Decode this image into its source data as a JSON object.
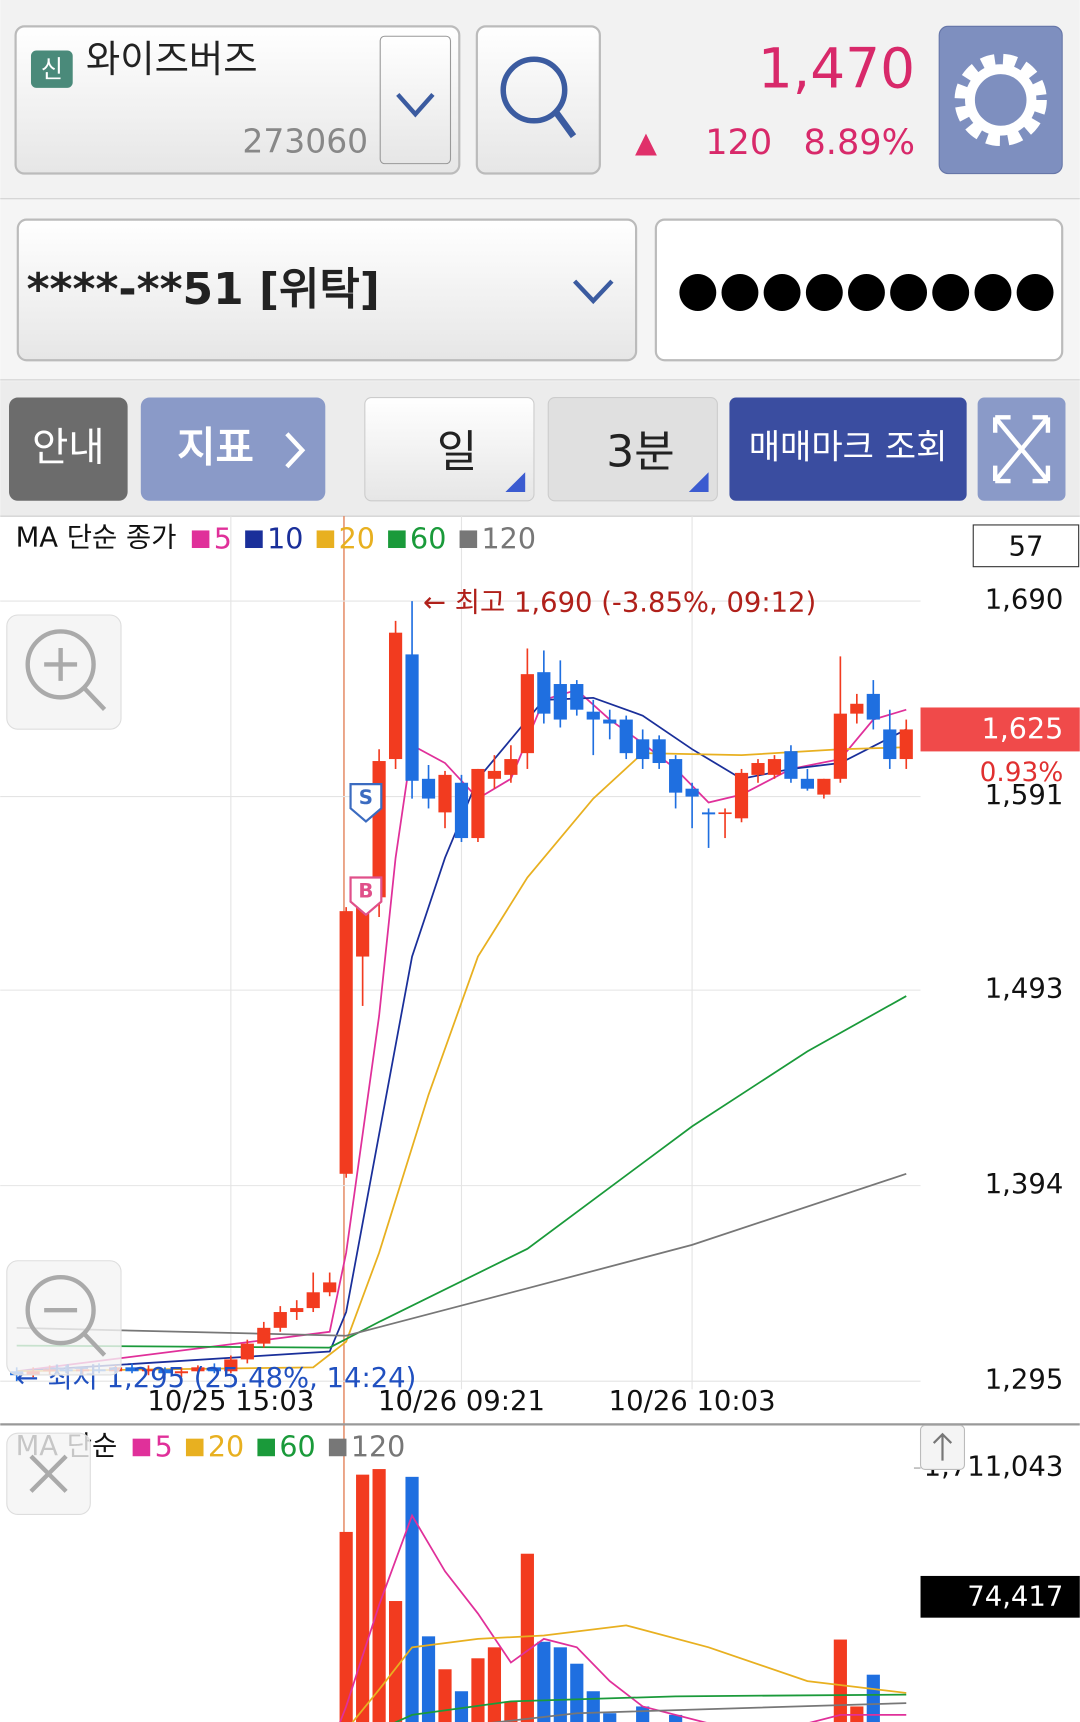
{
  "header": {
    "badge": "신",
    "name": "와이즈버즈",
    "code": "273060",
    "price": "1,470",
    "change_sign": "▲",
    "change": "120",
    "change_pct": "8.89%"
  },
  "account": {
    "number": "****-**51 [위탁]",
    "password": "●●●●●●●●●"
  },
  "toolbar": {
    "guide": "안내",
    "indicator": "지표",
    "period": "일",
    "interval": "3분",
    "trade_marks": "매매마크 조회"
  },
  "chart_data": [
    {
      "type": "candlestick",
      "legend_title": "MA 단순 종가",
      "counter": "57",
      "grid": true,
      "up_color": "#f23b1f",
      "down_color": "#1f6fe0",
      "categories": [
        null,
        null,
        null,
        null,
        null,
        null,
        null,
        null,
        null,
        null,
        null,
        null,
        null,
        "10/25 15:03",
        null,
        null,
        null,
        null,
        null,
        null,
        null,
        null,
        null,
        null,
        null,
        null,
        null,
        "10/26 09:21",
        null,
        null,
        null,
        null,
        null,
        null,
        null,
        null,
        null,
        null,
        null,
        null,
        null,
        "10/26 10:03",
        null,
        null,
        null,
        null,
        null,
        null,
        null,
        null,
        null,
        null,
        null,
        null,
        null
      ],
      "open": [
        1300,
        1298,
        1300,
        1301,
        1300,
        1301,
        1300,
        1302,
        1300,
        1301,
        1299,
        1300,
        1302,
        1300,
        1306,
        1314,
        1322,
        1330,
        1332,
        1340,
        1400,
        1510,
        1540,
        1610,
        1663,
        1600,
        1583,
        1598,
        1570,
        1600,
        1602,
        1613,
        1654,
        1648,
        1648,
        1634,
        1630,
        1630,
        1620,
        1620,
        1610,
        1595,
        1583,
        1583,
        1580,
        1602,
        1602,
        1614,
        1600,
        1592,
        1600,
        1633,
        1643,
        1625,
        1610
      ],
      "high": [
        1302,
        1302,
        1303,
        1303,
        1302,
        1304,
        1303,
        1304,
        1303,
        1302,
        1302,
        1303,
        1304,
        1308,
        1316,
        1325,
        1333,
        1336,
        1350,
        1350,
        1535,
        1545,
        1615,
        1680,
        1690,
        1607,
        1604,
        1602,
        1605,
        1612,
        1617,
        1666,
        1665,
        1660,
        1650,
        1640,
        1635,
        1632,
        1625,
        1622,
        1612,
        1598,
        1585,
        1585,
        1605,
        1610,
        1612,
        1617,
        1605,
        1600,
        1662,
        1643,
        1650,
        1635,
        1630
      ],
      "low": [
        1295,
        1297,
        1298,
        1299,
        1298,
        1299,
        1298,
        1299,
        1298,
        1298,
        1297,
        1298,
        1299,
        1299,
        1304,
        1312,
        1320,
        1326,
        1330,
        1338,
        1398,
        1485,
        1530,
        1605,
        1590,
        1585,
        1575,
        1568,
        1568,
        1595,
        1598,
        1605,
        1628,
        1626,
        1632,
        1612,
        1620,
        1610,
        1605,
        1605,
        1585,
        1575,
        1565,
        1570,
        1578,
        1598,
        1600,
        1598,
        1594,
        1590,
        1598,
        1628,
        1625,
        1605,
        1605
      ],
      "close": [
        1298,
        1300,
        1301,
        1300,
        1301,
        1300,
        1302,
        1300,
        1301,
        1299,
        1300,
        1302,
        1300,
        1306,
        1314,
        1322,
        1330,
        1332,
        1340,
        1345,
        1533,
        1540,
        1609,
        1674,
        1599,
        1590,
        1602,
        1570,
        1605,
        1604,
        1610,
        1653,
        1633,
        1630,
        1635,
        1630,
        1628,
        1613,
        1610,
        1608,
        1593,
        1591,
        1582,
        1583,
        1603,
        1608,
        1610,
        1600,
        1595,
        1600,
        1633,
        1638,
        1630,
        1610,
        1625
      ],
      "ylim": [
        1277,
        1733
      ],
      "yticks": [
        {
          "value": 1295,
          "label": "1,295"
        },
        {
          "value": 1394,
          "label": "1,394"
        },
        {
          "value": 1493,
          "label": "1,493"
        },
        {
          "value": 1591,
          "label": "1,591"
        },
        {
          "value": 1690,
          "label": "1,690"
        }
      ],
      "last_price": {
        "value": 1625,
        "label": "1,625"
      },
      "last_change": "0.93%",
      "high_note": "← 최고 1,690 (-3.85%, 09:12)",
      "low_note": "← 최저 1,295 (25.48%, 14:24)",
      "trade_marks": [
        "S",
        "B"
      ],
      "series": [
        {
          "name": "5",
          "color": "#e0309a",
          "x": [
            0,
            19,
            20,
            22,
            23,
            24,
            26,
            28,
            30,
            32,
            34,
            36,
            38,
            40,
            42,
            44,
            47,
            50,
            52,
            54
          ],
          "values": [
            1300,
            1320,
            1360,
            1480,
            1560,
            1617,
            1608,
            1590,
            1600,
            1640,
            1645,
            1630,
            1618,
            1605,
            1588,
            1592,
            1605,
            1610,
            1630,
            1635
          ]
        },
        {
          "name": "10",
          "color": "#1a2f9a",
          "x": [
            0,
            19,
            20,
            22,
            24,
            26,
            28,
            30,
            32,
            35,
            38,
            41,
            44,
            47,
            50,
            54
          ],
          "values": [
            1300,
            1310,
            1330,
            1420,
            1510,
            1560,
            1600,
            1620,
            1640,
            1641,
            1632,
            1615,
            1600,
            1605,
            1608,
            1625
          ]
        },
        {
          "name": "20",
          "color": "#e8b020",
          "x": [
            0,
            18,
            20,
            22,
            25,
            28,
            31,
            35,
            38,
            44,
            50,
            54
          ],
          "values": [
            1300,
            1302,
            1315,
            1360,
            1440,
            1510,
            1550,
            1590,
            1613,
            1612,
            1615,
            1616
          ]
        },
        {
          "name": "60",
          "color": "#1a9a3a",
          "x": [
            0,
            19,
            22,
            31,
            41,
            48,
            54
          ],
          "values": [
            1313,
            1312,
            1325,
            1362,
            1424,
            1462,
            1490
          ]
        },
        {
          "name": "120",
          "color": "#777777",
          "x": [
            0,
            20,
            31,
            41,
            54
          ],
          "values": [
            1322,
            1318,
            1342,
            1364,
            1400
          ]
        }
      ]
    },
    {
      "type": "volume",
      "legend_title": "MA 단순",
      "values": [
        12000,
        20000,
        15000,
        10000,
        18000,
        25000,
        14000,
        16000,
        22000,
        12000,
        15000,
        20000,
        18000,
        25000,
        30000,
        20000,
        15000,
        20000,
        25000,
        40000,
        1333000,
        1672000,
        1705000,
        924000,
        1659000,
        715000,
        520000,
        390000,
        585000,
        650000,
        330000,
        1204000,
        683000,
        650000,
        553000,
        390000,
        260000,
        200000,
        300000,
        180000,
        250000,
        200000,
        150000,
        120000,
        200000,
        150000,
        120000,
        100000,
        150000,
        200000,
        696000,
        300000,
        488000,
        200000,
        74417
      ],
      "ylim": [
        0,
        1950000
      ],
      "yticks": [
        {
          "value": 1711043,
          "label": "1,711,043"
        }
      ],
      "last_volume": {
        "value": 74417,
        "label": "74,417"
      },
      "series": [
        {
          "name": "5",
          "color": "#e0309a",
          "x": [
            19,
            20,
            22,
            24,
            26,
            28,
            30,
            32,
            34,
            36,
            38,
            42,
            46,
            50,
            54
          ],
          "values": [
            50000,
            300000,
            900000,
            1430000,
            1100000,
            850000,
            560000,
            700000,
            650000,
            450000,
            300000,
            200000,
            150000,
            250000,
            250000
          ]
        },
        {
          "name": "20",
          "color": "#e8b020",
          "x": [
            19,
            22,
            24,
            28,
            32,
            37,
            42,
            48,
            54
          ],
          "values": [
            40000,
            400000,
            650000,
            700000,
            720000,
            780000,
            650000,
            450000,
            380000
          ]
        },
        {
          "name": "60",
          "color": "#1a9a3a",
          "x": [
            19,
            24,
            30,
            40,
            54
          ],
          "values": [
            30000,
            250000,
            330000,
            360000,
            370000
          ]
        },
        {
          "name": "120",
          "color": "#777777",
          "x": [
            19,
            24,
            34,
            54
          ],
          "values": [
            25000,
            150000,
            260000,
            320000
          ]
        }
      ]
    }
  ]
}
